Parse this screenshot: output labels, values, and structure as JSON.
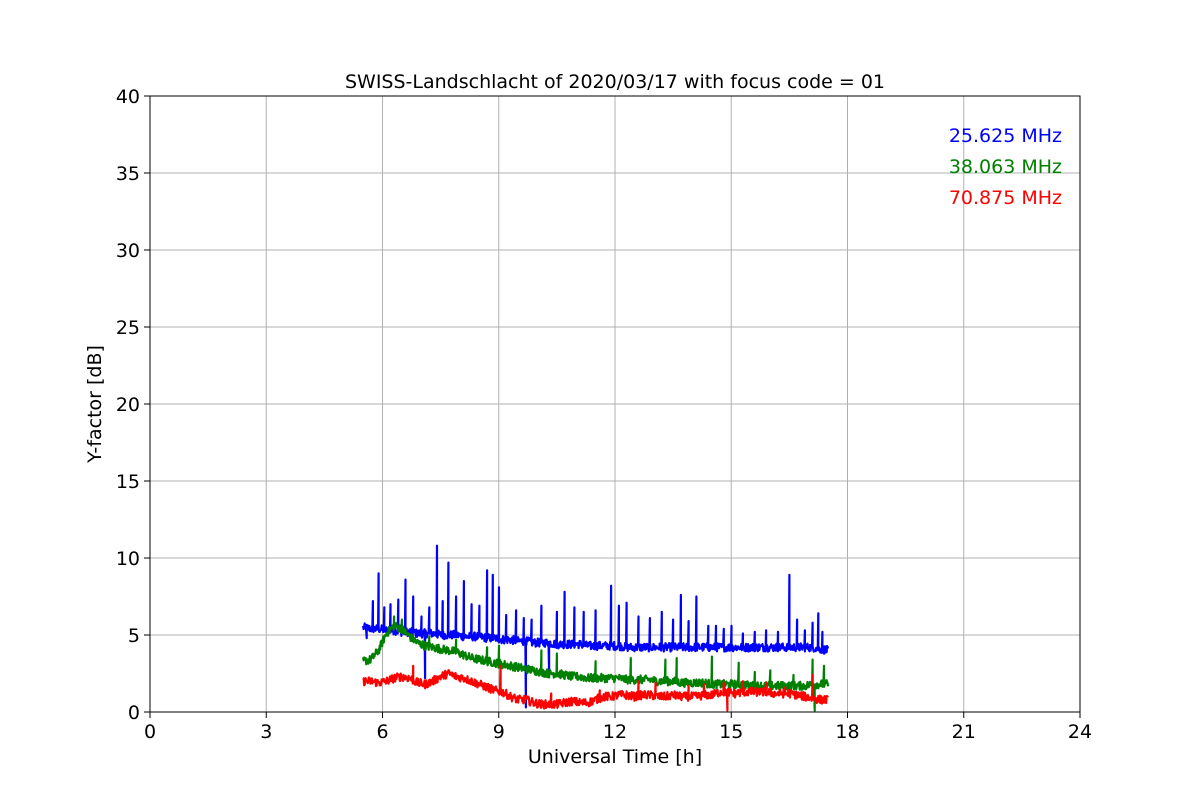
{
  "chart_data": {
    "type": "line",
    "title": "SWISS-Landschlacht of 2020/03/17 with focus code = 01",
    "xlabel": "Universal Time [h]",
    "ylabel": "Y-factor [dB]",
    "xlim": [
      0,
      24
    ],
    "ylim": [
      0,
      40
    ],
    "xticks": [
      0,
      3,
      6,
      9,
      12,
      15,
      18,
      21,
      24
    ],
    "yticks": [
      0,
      5,
      10,
      15,
      20,
      25,
      30,
      35,
      40
    ],
    "grid": true,
    "legend_position": "top-right",
    "series": [
      {
        "name": "25.625 MHz",
        "color": "#0000ff",
        "x": [
          5.5,
          5.7,
          5.9,
          6.1,
          6.3,
          6.5,
          6.7,
          6.9,
          7.1,
          7.3,
          7.5,
          7.7,
          7.9,
          8.1,
          8.3,
          8.5,
          8.7,
          8.9,
          9.1,
          9.3,
          9.5,
          9.7,
          9.9,
          10.1,
          10.3,
          10.5,
          10.7,
          10.9,
          11.1,
          11.3,
          11.5,
          11.7,
          11.9,
          12.1,
          12.3,
          12.5,
          12.7,
          12.9,
          13.1,
          13.3,
          13.5,
          13.7,
          13.9,
          14.1,
          14.3,
          14.5,
          14.7,
          14.9,
          15.1,
          15.3,
          15.5,
          15.7,
          15.9,
          16.1,
          16.3,
          16.5,
          16.7,
          16.9,
          17.1,
          17.3,
          17.5
        ],
        "y": [
          5.5,
          5.4,
          5.4,
          5.3,
          5.3,
          5.2,
          5.2,
          5.1,
          5.1,
          5.1,
          5.0,
          5.0,
          5.0,
          4.9,
          4.9,
          4.9,
          4.8,
          4.8,
          4.7,
          4.7,
          4.6,
          4.6,
          4.5,
          4.5,
          4.5,
          4.4,
          4.4,
          4.4,
          4.4,
          4.3,
          4.3,
          4.3,
          4.3,
          4.3,
          4.2,
          4.2,
          4.2,
          4.2,
          4.2,
          4.2,
          4.2,
          4.2,
          4.2,
          4.2,
          4.2,
          4.2,
          4.2,
          4.2,
          4.2,
          4.2,
          4.2,
          4.2,
          4.2,
          4.2,
          4.2,
          4.2,
          4.2,
          4.2,
          4.2,
          4.1,
          4.0
        ],
        "spikes": [
          [
            5.6,
            4.8
          ],
          [
            5.75,
            7.2
          ],
          [
            5.9,
            9.0
          ],
          [
            6.05,
            6.8
          ],
          [
            6.2,
            7.0
          ],
          [
            6.4,
            7.3
          ],
          [
            6.6,
            8.6
          ],
          [
            6.8,
            7.5
          ],
          [
            7.0,
            6.2
          ],
          [
            7.2,
            6.8
          ],
          [
            7.4,
            10.8
          ],
          [
            7.55,
            7.2
          ],
          [
            7.7,
            9.7
          ],
          [
            7.9,
            7.5
          ],
          [
            8.1,
            8.5
          ],
          [
            8.3,
            7.0
          ],
          [
            8.5,
            6.9
          ],
          [
            8.7,
            9.2
          ],
          [
            8.85,
            8.9
          ],
          [
            9.0,
            8.1
          ],
          [
            9.2,
            6.3
          ],
          [
            9.45,
            6.6
          ],
          [
            9.65,
            6.1
          ],
          [
            9.85,
            6.0
          ],
          [
            10.1,
            6.9
          ],
          [
            10.3,
            8.6
          ],
          [
            10.5,
            6.5
          ],
          [
            10.7,
            7.8
          ],
          [
            10.95,
            6.8
          ],
          [
            11.2,
            6.5
          ],
          [
            11.5,
            6.6
          ],
          [
            11.9,
            8.2
          ],
          [
            12.1,
            6.9
          ],
          [
            12.3,
            7.1
          ],
          [
            12.6,
            6.2
          ],
          [
            12.9,
            6.1
          ],
          [
            13.2,
            6.5
          ],
          [
            13.5,
            6.0
          ],
          [
            13.7,
            7.6
          ],
          [
            13.9,
            5.9
          ],
          [
            14.1,
            7.5
          ],
          [
            14.4,
            5.6
          ],
          [
            14.6,
            5.6
          ],
          [
            14.8,
            5.4
          ],
          [
            15.0,
            5.6
          ],
          [
            15.3,
            5.1
          ],
          [
            15.6,
            5.2
          ],
          [
            15.9,
            5.3
          ],
          [
            16.2,
            5.2
          ],
          [
            16.5,
            8.9
          ],
          [
            16.7,
            6.0
          ],
          [
            16.9,
            5.3
          ],
          [
            17.1,
            5.8
          ],
          [
            17.25,
            6.4
          ],
          [
            17.35,
            5.2
          ]
        ],
        "dips": [
          [
            7.1,
            2.2
          ],
          [
            9.7,
            0.3
          ],
          [
            10.3,
            2.6
          ]
        ]
      },
      {
        "name": "38.063 MHz",
        "color": "#008000",
        "x": [
          5.5,
          5.7,
          5.9,
          6.1,
          6.3,
          6.5,
          6.7,
          6.9,
          7.1,
          7.3,
          7.5,
          7.7,
          7.9,
          8.1,
          8.3,
          8.5,
          8.7,
          8.9,
          9.1,
          9.3,
          9.5,
          9.7,
          9.9,
          10.1,
          10.3,
          10.5,
          10.7,
          10.9,
          11.1,
          11.3,
          11.5,
          11.7,
          11.9,
          12.1,
          12.3,
          12.5,
          12.7,
          12.9,
          13.1,
          13.3,
          13.5,
          13.7,
          13.9,
          14.1,
          14.3,
          14.5,
          14.7,
          14.9,
          15.1,
          15.3,
          15.5,
          15.7,
          15.9,
          16.1,
          16.3,
          16.5,
          16.7,
          16.9,
          17.1,
          17.3,
          17.5
        ],
        "y": [
          3.3,
          3.4,
          4.0,
          5.1,
          5.6,
          5.4,
          4.9,
          4.5,
          4.3,
          4.2,
          4.1,
          4.0,
          3.9,
          3.7,
          3.5,
          3.4,
          3.3,
          3.2,
          3.1,
          3.0,
          2.9,
          2.8,
          2.7,
          2.6,
          2.5,
          2.5,
          2.4,
          2.3,
          2.3,
          2.2,
          2.2,
          2.2,
          2.2,
          2.2,
          2.1,
          2.1,
          2.1,
          2.1,
          2.0,
          2.0,
          2.0,
          1.9,
          1.9,
          1.9,
          1.9,
          1.8,
          1.8,
          1.8,
          1.8,
          1.8,
          1.7,
          1.7,
          1.7,
          1.7,
          1.7,
          1.7,
          1.7,
          1.7,
          1.8,
          1.8,
          1.8
        ],
        "spikes": [
          [
            6.3,
            6.2
          ],
          [
            6.5,
            6.0
          ],
          [
            7.2,
            4.9
          ],
          [
            7.9,
            4.7
          ],
          [
            8.7,
            4.2
          ],
          [
            9.0,
            4.3
          ],
          [
            10.1,
            4.0
          ],
          [
            10.5,
            3.8
          ],
          [
            11.5,
            3.3
          ],
          [
            12.4,
            3.5
          ],
          [
            13.3,
            3.4
          ],
          [
            13.6,
            3.5
          ],
          [
            14.5,
            3.6
          ],
          [
            15.2,
            3.2
          ],
          [
            15.6,
            2.6
          ],
          [
            16.0,
            2.7
          ],
          [
            16.6,
            2.4
          ],
          [
            17.1,
            3.4
          ],
          [
            17.4,
            3.0
          ]
        ],
        "dips": [
          [
            17.15,
            0.1
          ]
        ]
      },
      {
        "name": "70.875 MHz",
        "color": "#ff0000",
        "x": [
          5.5,
          5.7,
          5.9,
          6.1,
          6.3,
          6.5,
          6.7,
          6.9,
          7.1,
          7.3,
          7.5,
          7.7,
          7.9,
          8.1,
          8.3,
          8.5,
          8.7,
          8.9,
          9.1,
          9.3,
          9.5,
          9.7,
          9.9,
          10.1,
          10.3,
          10.5,
          10.7,
          10.9,
          11.1,
          11.3,
          11.5,
          11.7,
          11.9,
          12.1,
          12.3,
          12.5,
          12.7,
          12.9,
          13.1,
          13.3,
          13.5,
          13.7,
          13.9,
          14.1,
          14.3,
          14.5,
          14.7,
          14.9,
          15.1,
          15.3,
          15.5,
          15.7,
          15.9,
          16.1,
          16.3,
          16.5,
          16.7,
          16.9,
          17.1,
          17.3,
          17.5
        ],
        "y": [
          2.0,
          2.0,
          1.9,
          2.0,
          2.2,
          2.3,
          2.2,
          1.9,
          1.8,
          2.0,
          2.3,
          2.5,
          2.3,
          2.2,
          2.0,
          1.8,
          1.6,
          1.4,
          1.3,
          1.0,
          0.8,
          0.8,
          0.6,
          0.5,
          0.5,
          0.5,
          0.6,
          0.7,
          0.6,
          0.6,
          0.8,
          1.0,
          1.0,
          1.1,
          1.1,
          1.0,
          1.1,
          1.1,
          1.0,
          1.0,
          1.1,
          1.0,
          1.0,
          1.0,
          1.1,
          1.1,
          1.3,
          1.3,
          1.2,
          1.3,
          1.3,
          1.3,
          1.3,
          1.2,
          1.2,
          1.2,
          1.1,
          1.0,
          0.9,
          0.8,
          0.8
        ],
        "spikes": [
          [
            6.8,
            3.0
          ],
          [
            9.05,
            3.0
          ],
          [
            9.1,
            2.8
          ],
          [
            10.35,
            1.2
          ],
          [
            11.6,
            1.4
          ],
          [
            12.6,
            2.0
          ],
          [
            13.05,
            1.9
          ],
          [
            13.9,
            1.7
          ],
          [
            14.3,
            1.8
          ],
          [
            14.8,
            1.9
          ],
          [
            15.3,
            2.0
          ],
          [
            15.9,
            1.9
          ],
          [
            16.4,
            1.6
          ],
          [
            17.1,
            2.4
          ]
        ],
        "dips": [
          [
            14.9,
            0.1
          ],
          [
            9.1,
            1.2
          ]
        ]
      }
    ]
  }
}
